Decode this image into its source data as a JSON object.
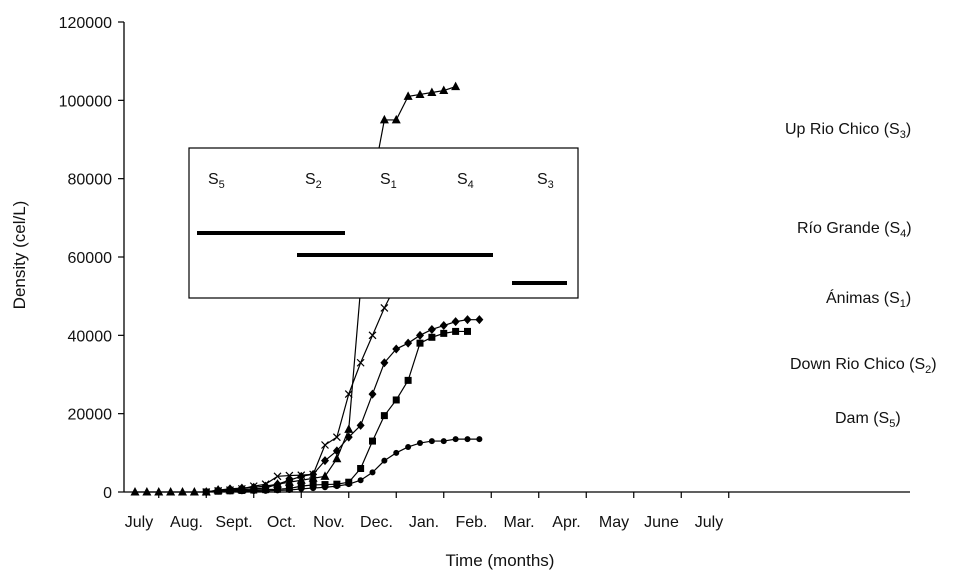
{
  "chart_data": {
    "type": "line",
    "xlabel": "Time (months)",
    "ylabel": "Density (cel/L)",
    "ylim": [
      0,
      120000
    ],
    "yticks": [
      0,
      20000,
      40000,
      60000,
      80000,
      100000,
      120000
    ],
    "yticks_labels": [
      "0",
      "20000",
      "40000",
      "60000",
      "80000",
      "100000",
      "120000"
    ],
    "month_labels": [
      "July",
      "Aug.",
      "Sept.",
      "Oct.",
      "Nov.",
      "Dec.",
      "Jan.",
      "Feb.",
      "Mar.",
      "Apr.",
      "May",
      "June",
      "July"
    ],
    "series": [
      {
        "name": "Up Rio Chico (S3)",
        "label_main": "Up Rio Chico (S",
        "label_sub": "3",
        "marker": "triangle",
        "points": [
          [
            0.0,
            0
          ],
          [
            0.5,
            0
          ],
          [
            1.0,
            0
          ],
          [
            1.5,
            0
          ],
          [
            2.0,
            0
          ],
          [
            2.5,
            0
          ],
          [
            3.0,
            0
          ],
          [
            3.5,
            500
          ],
          [
            4.0,
            500
          ],
          [
            4.5,
            600
          ],
          [
            5.0,
            800
          ],
          [
            5.5,
            1000
          ],
          [
            6.0,
            2000
          ],
          [
            6.5,
            2500
          ],
          [
            7.0,
            3000
          ],
          [
            7.5,
            3500
          ],
          [
            8.0,
            4000
          ],
          [
            8.5,
            8500
          ],
          [
            9.0,
            16000
          ],
          [
            9.5,
            52000
          ],
          [
            10.0,
            79000
          ],
          [
            10.5,
            95000
          ],
          [
            11.0,
            95000
          ],
          [
            11.5,
            101000
          ],
          [
            12.0,
            101500
          ],
          [
            12.5,
            102000
          ],
          [
            13.0,
            102500
          ],
          [
            13.5,
            103500
          ]
        ]
      },
      {
        "name": "Río Grande (S4)",
        "label_main": "Río Grande (S",
        "label_sub": "4",
        "marker": "x",
        "points": [
          [
            3.0,
            0
          ],
          [
            3.5,
            300
          ],
          [
            4.0,
            500
          ],
          [
            4.5,
            800
          ],
          [
            5.0,
            1500
          ],
          [
            5.5,
            2000
          ],
          [
            6.0,
            4000
          ],
          [
            6.5,
            4200
          ],
          [
            7.0,
            4300
          ],
          [
            7.5,
            4500
          ],
          [
            8.0,
            12000
          ],
          [
            8.5,
            14000
          ],
          [
            9.0,
            25000
          ],
          [
            9.5,
            33000
          ],
          [
            10.0,
            40000
          ],
          [
            10.5,
            47000
          ],
          [
            11.0,
            53000
          ],
          [
            11.5,
            57500
          ],
          [
            12.0,
            59000
          ],
          [
            12.5,
            61500
          ],
          [
            13.0,
            62000
          ],
          [
            13.5,
            62000
          ]
        ]
      },
      {
        "name": "Ánimas (S1)",
        "label_main": "Ánimas (S",
        "label_sub": "1",
        "marker": "diamond",
        "points": [
          [
            3.0,
            0
          ],
          [
            3.5,
            500
          ],
          [
            4.0,
            800
          ],
          [
            4.5,
            1000
          ],
          [
            5.0,
            1200
          ],
          [
            5.5,
            1500
          ],
          [
            6.0,
            2000
          ],
          [
            6.5,
            3000
          ],
          [
            7.0,
            4000
          ],
          [
            7.5,
            4500
          ],
          [
            8.0,
            8000
          ],
          [
            8.5,
            10500
          ],
          [
            9.0,
            14000
          ],
          [
            9.5,
            17000
          ],
          [
            10.0,
            25000
          ],
          [
            10.5,
            33000
          ],
          [
            11.0,
            36500
          ],
          [
            11.5,
            38000
          ],
          [
            12.0,
            40000
          ],
          [
            12.5,
            41500
          ],
          [
            13.0,
            42500
          ],
          [
            13.5,
            43500
          ],
          [
            14.0,
            44000
          ],
          [
            14.5,
            44000
          ]
        ]
      },
      {
        "name": "Down Rio Chico (S2)",
        "label_main": "Down Rio Chico (S",
        "label_sub": "2",
        "marker": "square",
        "points": [
          [
            3.0,
            0
          ],
          [
            3.5,
            200
          ],
          [
            4.0,
            300
          ],
          [
            4.5,
            400
          ],
          [
            5.0,
            500
          ],
          [
            5.5,
            600
          ],
          [
            6.0,
            700
          ],
          [
            6.5,
            900
          ],
          [
            7.0,
            1500
          ],
          [
            7.5,
            1800
          ],
          [
            8.0,
            1900
          ],
          [
            8.5,
            2000
          ],
          [
            9.0,
            2500
          ],
          [
            9.5,
            6000
          ],
          [
            10.0,
            13000
          ],
          [
            10.5,
            19500
          ],
          [
            11.0,
            23500
          ],
          [
            11.5,
            28500
          ],
          [
            12.0,
            38000
          ],
          [
            12.5,
            39500
          ],
          [
            13.0,
            40500
          ],
          [
            13.5,
            41000
          ],
          [
            14.0,
            41000
          ]
        ]
      },
      {
        "name": "Dam (S5)",
        "label_main": "Dam (S",
        "label_sub": "5",
        "marker": "circle",
        "points": [
          [
            3.0,
            0
          ],
          [
            3.5,
            100
          ],
          [
            4.0,
            150
          ],
          [
            4.5,
            200
          ],
          [
            5.0,
            250
          ],
          [
            5.5,
            300
          ],
          [
            6.0,
            400
          ],
          [
            6.5,
            500
          ],
          [
            7.0,
            800
          ],
          [
            7.5,
            1000
          ],
          [
            8.0,
            1200
          ],
          [
            8.5,
            1500
          ],
          [
            9.0,
            2000
          ],
          [
            9.5,
            3000
          ],
          [
            10.0,
            5000
          ],
          [
            10.5,
            8000
          ],
          [
            11.0,
            10000
          ],
          [
            11.5,
            11500
          ],
          [
            12.0,
            12500
          ],
          [
            12.5,
            13000
          ],
          [
            13.0,
            13000
          ],
          [
            13.5,
            13500
          ],
          [
            14.0,
            13500
          ],
          [
            14.5,
            13500
          ]
        ]
      }
    ],
    "inset": {
      "labels": [
        {
          "main": "S",
          "sub": "5"
        },
        {
          "main": "S",
          "sub": "2"
        },
        {
          "main": "S",
          "sub": "1"
        },
        {
          "main": "S",
          "sub": "4"
        },
        {
          "main": "S",
          "sub": "3"
        }
      ]
    }
  }
}
